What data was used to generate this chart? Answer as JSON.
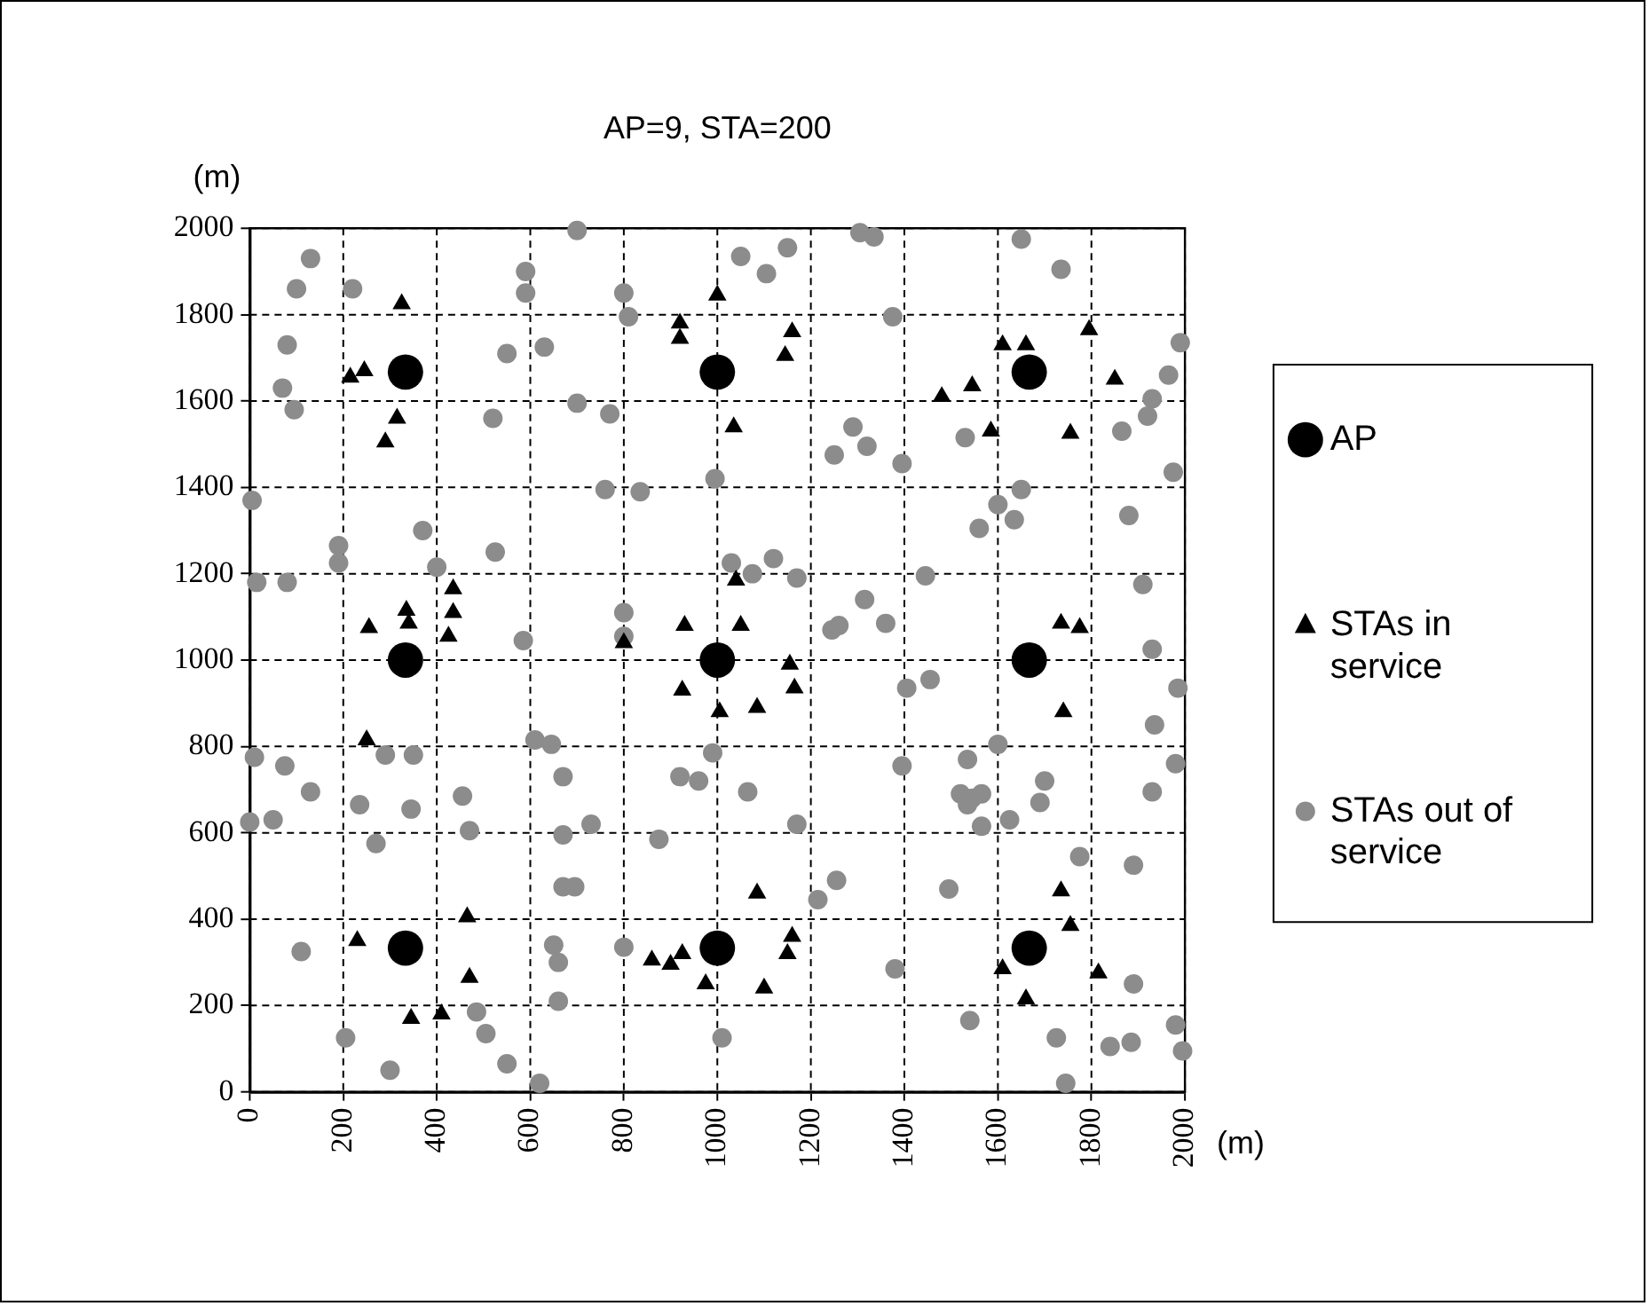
{
  "chart_data": {
    "type": "scatter",
    "title": "AP=9, STA=200",
    "xlabel": "(m)",
    "ylabel": "(m)",
    "xlim": [
      0,
      2000
    ],
    "ylim": [
      0,
      2000
    ],
    "xticks": [
      0,
      200,
      400,
      600,
      800,
      1000,
      1200,
      1400,
      1600,
      1800,
      2000
    ],
    "yticks": [
      0,
      200,
      400,
      600,
      800,
      1000,
      1200,
      1400,
      1600,
      1800,
      2000
    ],
    "grid": true,
    "legend": "right",
    "series": [
      {
        "name": "AP",
        "color": "#000000",
        "marker": "circle",
        "x": [
          333,
          1000,
          1667,
          333,
          1000,
          1667,
          333,
          1000,
          1667
        ],
        "values": [
          1667,
          1667,
          1667,
          1000,
          1000,
          1000,
          333,
          333,
          333
        ]
      },
      {
        "name": "STAs in service",
        "color": "#000000",
        "marker": "triangle",
        "x": [
          325,
          920,
          920,
          1000,
          215,
          245,
          315,
          290,
          1160,
          1145,
          1035,
          1610,
          1660,
          1795,
          1850,
          1480,
          1545,
          1585,
          1755,
          1040,
          255,
          335,
          340,
          435,
          435,
          425,
          800,
          930,
          925,
          1005,
          250,
          465,
          230,
          470,
          345,
          410,
          860,
          900,
          925,
          1050,
          1155,
          1165,
          1085,
          1735,
          1775,
          1740,
          1085,
          1735,
          975,
          1100,
          1150,
          1160,
          1610,
          1755,
          1660,
          1815
        ],
        "values": [
          1825,
          1780,
          1745,
          1845,
          1655,
          1670,
          1560,
          1505,
          1760,
          1705,
          1540,
          1730,
          1730,
          1765,
          1650,
          1610,
          1635,
          1530,
          1525,
          1185,
          1075,
          1115,
          1085,
          1165,
          1110,
          1055,
          1040,
          1080,
          930,
          880,
          815,
          405,
          350,
          265,
          170,
          180,
          305,
          295,
          320,
          1080,
          990,
          935,
          890,
          1085,
          1075,
          880,
          460,
          465,
          250,
          240,
          320,
          360,
          285,
          385,
          215,
          275
        ]
      },
      {
        "name": "STAs out of service",
        "color": "#8c8c8c",
        "marker": "circle",
        "x": [
          130,
          100,
          220,
          590,
          590,
          700,
          800,
          810,
          80,
          70,
          95,
          550,
          630,
          520,
          700,
          770,
          5,
          760,
          835,
          370,
          190,
          190,
          525,
          400,
          15,
          80,
          1050,
          1105,
          1150,
          1305,
          1335,
          1650,
          1735,
          1375,
          1990,
          1965,
          1930,
          1920,
          1865,
          1530,
          1290,
          1320,
          1250,
          1395,
          995,
          1975,
          1650,
          1600,
          1635,
          1560,
          1880,
          1030,
          1075,
          1120,
          1170,
          1445,
          1910,
          1315,
          800,
          800,
          585,
          10,
          75,
          130,
          290,
          350,
          235,
          345,
          455,
          0,
          50,
          270,
          470,
          610,
          645,
          670,
          670,
          730,
          670,
          695,
          875,
          920,
          960,
          990,
          110,
          650,
          660,
          800,
          660,
          205,
          300,
          485,
          505,
          550,
          620,
          1245,
          1260,
          1360,
          1930,
          1985,
          1405,
          1455,
          1935,
          1600,
          1535,
          1395,
          1980,
          1700,
          1065,
          1520,
          1545,
          1565,
          1535,
          1690,
          1930,
          1565,
          1625,
          1170,
          1775,
          1890,
          1255,
          1215,
          1495,
          1010,
          1380,
          1540,
          1890,
          1725,
          1840,
          1885,
          1980,
          1995,
          1745
        ],
        "values": [
          1930,
          1860,
          1860,
          1900,
          1850,
          1995,
          1850,
          1795,
          1730,
          1630,
          1580,
          1710,
          1725,
          1560,
          1595,
          1570,
          1370,
          1395,
          1390,
          1300,
          1265,
          1225,
          1250,
          1215,
          1180,
          1180,
          1935,
          1895,
          1955,
          1990,
          1980,
          1975,
          1905,
          1795,
          1735,
          1660,
          1605,
          1565,
          1530,
          1515,
          1540,
          1495,
          1475,
          1455,
          1420,
          1435,
          1395,
          1360,
          1325,
          1305,
          1335,
          1225,
          1200,
          1235,
          1190,
          1195,
          1175,
          1140,
          1110,
          1055,
          1045,
          775,
          755,
          695,
          780,
          780,
          665,
          655,
          685,
          625,
          630,
          575,
          605,
          815,
          805,
          730,
          595,
          620,
          475,
          475,
          585,
          730,
          720,
          785,
          325,
          340,
          300,
          335,
          210,
          125,
          50,
          185,
          135,
          65,
          20,
          1070,
          1080,
          1085,
          1025,
          935,
          935,
          955,
          850,
          805,
          770,
          755,
          760,
          720,
          695,
          690,
          680,
          690,
          665,
          670,
          695,
          615,
          630,
          620,
          545,
          525,
          490,
          445,
          470,
          125,
          285,
          165,
          250,
          125,
          105,
          115,
          155,
          95,
          20
        ]
      }
    ]
  }
}
